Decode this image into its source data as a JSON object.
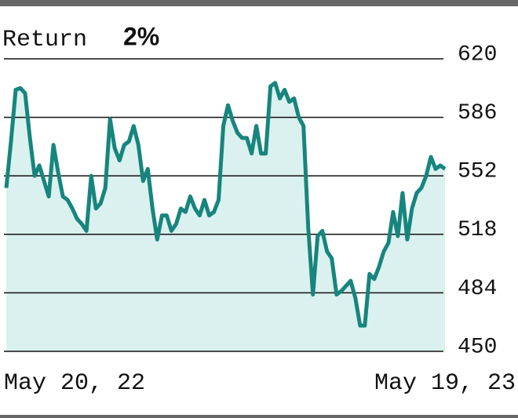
{
  "chart_data": {
    "type": "line",
    "title": "Return",
    "title_value": "2%",
    "categories": [
      "May 20, 22",
      null,
      null,
      null,
      null,
      null,
      null,
      null,
      null,
      null,
      null,
      null,
      null,
      null,
      null,
      null,
      null,
      null,
      null,
      null,
      null,
      null,
      null,
      null,
      null,
      null,
      null,
      null,
      null,
      null,
      null,
      null,
      null,
      null,
      null,
      null,
      null,
      null,
      null,
      null,
      null,
      null,
      null,
      null,
      null,
      null,
      null,
      null,
      null,
      null,
      null,
      null,
      null,
      null,
      null,
      null,
      null,
      null,
      null,
      null,
      null,
      null,
      null,
      null,
      null,
      null,
      null,
      null,
      null,
      null,
      null,
      null,
      null,
      null,
      null,
      null,
      null,
      null,
      null,
      null,
      null,
      null,
      null,
      null,
      null,
      null,
      null,
      null,
      null,
      null,
      null,
      null,
      null,
      "May 19, 23"
    ],
    "values": [
      545,
      572,
      602,
      603,
      600,
      574,
      552,
      558,
      549,
      540,
      570,
      554,
      540,
      538,
      533,
      527,
      524,
      520,
      552,
      533,
      536,
      545,
      585,
      568,
      561,
      570,
      572,
      581,
      570,
      549,
      556,
      533,
      515,
      529,
      529,
      520,
      524,
      533,
      531,
      540,
      533,
      529,
      538,
      529,
      531,
      538,
      581,
      593,
      584,
      577,
      574,
      574,
      565,
      581,
      565,
      565,
      604,
      606,
      597,
      602,
      595,
      597,
      586,
      581,
      522,
      483,
      517,
      520,
      508,
      504,
      483,
      485,
      488,
      491,
      481,
      465,
      465,
      495,
      492,
      499,
      508,
      513,
      531,
      517,
      542,
      515,
      533,
      542,
      545,
      552,
      563,
      556,
      558,
      556
    ],
    "color": "#17857d",
    "fill_color": "#daf1ef",
    "ylim": [
      450,
      620
    ],
    "yticks": [
      450,
      484,
      518,
      552,
      586,
      620
    ],
    "grid": true
  }
}
